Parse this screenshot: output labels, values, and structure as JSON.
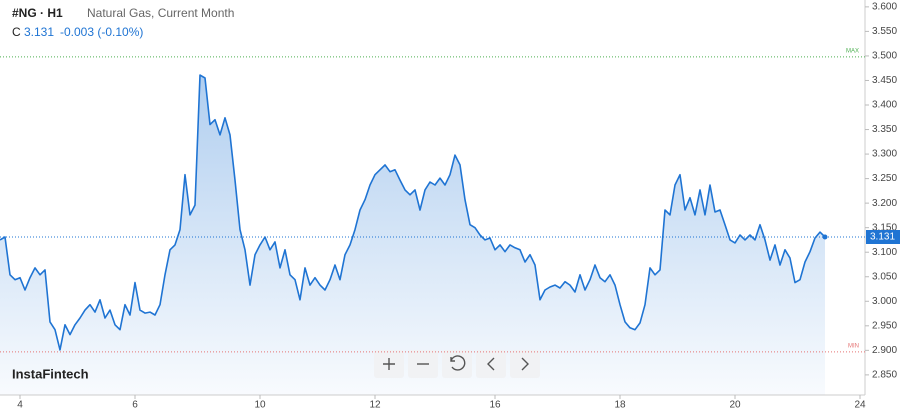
{
  "chart_data": {
    "type": "area",
    "symbol": "#NG · H1",
    "title": "Natural Gas, Current Month",
    "close_prefix": "C",
    "current": 3.131,
    "change": "-0.003 (-0.10%)",
    "watermark": "InstaFintech",
    "color": "#1f74d3",
    "values": [
      3.125,
      3.131,
      3.054,
      3.044,
      3.048,
      3.023,
      3.048,
      3.068,
      3.054,
      3.064,
      2.958,
      2.942,
      2.901,
      2.952,
      2.932,
      2.952,
      2.966,
      2.982,
      2.993,
      2.978,
      3.003,
      2.966,
      2.982,
      2.952,
      2.942,
      2.993,
      2.972,
      3.038,
      2.982,
      2.976,
      2.978,
      2.972,
      2.993,
      3.054,
      3.105,
      3.115,
      3.146,
      3.258,
      3.176,
      3.196,
      3.461,
      3.455,
      3.36,
      3.37,
      3.339,
      3.374,
      3.339,
      3.247,
      3.146,
      3.105,
      3.033,
      3.095,
      3.115,
      3.131,
      3.105,
      3.121,
      3.068,
      3.105,
      3.054,
      3.044,
      3.003,
      3.068,
      3.033,
      3.048,
      3.033,
      3.023,
      3.044,
      3.074,
      3.044,
      3.095,
      3.115,
      3.146,
      3.186,
      3.207,
      3.237,
      3.258,
      3.268,
      3.278,
      3.264,
      3.268,
      3.247,
      3.227,
      3.217,
      3.227,
      3.186,
      3.227,
      3.243,
      3.237,
      3.251,
      3.237,
      3.258,
      3.298,
      3.278,
      3.207,
      3.156,
      3.15,
      3.135,
      3.125,
      3.129,
      3.105,
      3.115,
      3.101,
      3.115,
      3.109,
      3.105,
      3.08,
      3.095,
      3.074,
      3.003,
      3.023,
      3.029,
      3.033,
      3.027,
      3.04,
      3.033,
      3.019,
      3.054,
      3.023,
      3.044,
      3.074,
      3.048,
      3.04,
      3.054,
      3.033,
      2.993,
      2.958,
      2.946,
      2.942,
      2.956,
      2.993,
      3.068,
      3.054,
      3.064,
      3.186,
      3.176,
      3.237,
      3.258,
      3.186,
      3.211,
      3.176,
      3.227,
      3.176,
      3.237,
      3.182,
      3.186,
      3.156,
      3.125,
      3.119,
      3.135,
      3.125,
      3.135,
      3.125,
      3.156,
      3.125,
      3.084,
      3.115,
      3.074,
      3.105,
      3.088,
      3.038,
      3.044,
      3.08,
      3.101,
      3.129,
      3.141,
      3.131
    ],
    "xlim": [
      0,
      173
    ],
    "xticks": [
      {
        "value": 4,
        "label": "4"
      },
      {
        "value": 27,
        "label": "6"
      },
      {
        "value": 52,
        "label": "10"
      },
      {
        "value": 75,
        "label": "12"
      },
      {
        "value": 99,
        "label": "16"
      },
      {
        "value": 124,
        "label": "18"
      },
      {
        "value": 147,
        "label": "20"
      },
      {
        "value": 172,
        "label": "24"
      }
    ],
    "ylim": [
      2.809,
      3.614
    ],
    "yticks": [
      {
        "value": 2.85,
        "label": "2.850"
      },
      {
        "value": 2.9,
        "label": "2.900"
      },
      {
        "value": 2.95,
        "label": "2.950"
      },
      {
        "value": 3.0,
        "label": "3.000"
      },
      {
        "value": 3.05,
        "label": "3.050"
      },
      {
        "value": 3.1,
        "label": "3.100"
      },
      {
        "value": 3.15,
        "label": "3.150"
      },
      {
        "value": 3.2,
        "label": "3.200"
      },
      {
        "value": 3.25,
        "label": "3.250"
      },
      {
        "value": 3.3,
        "label": "3.300"
      },
      {
        "value": 3.35,
        "label": "3.350"
      },
      {
        "value": 3.4,
        "label": "3.400"
      },
      {
        "value": 3.45,
        "label": "3.450"
      },
      {
        "value": 3.5,
        "label": "3.500"
      },
      {
        "value": 3.55,
        "label": "3.550"
      },
      {
        "value": 3.6,
        "label": "3.600"
      }
    ],
    "levels": [
      {
        "label": "MAX",
        "value": 3.498,
        "color": "#4caf50"
      },
      {
        "label": "MIN",
        "value": 2.897,
        "color": "#e57373"
      }
    ]
  }
}
